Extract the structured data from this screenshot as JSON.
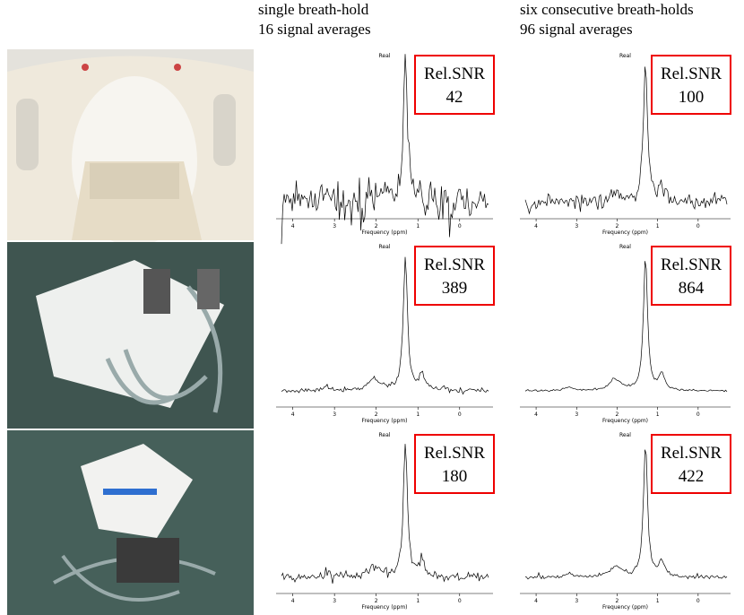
{
  "headers": [
    {
      "line1": "single breath-hold",
      "line2": "16 signal averages"
    },
    {
      "line1": "six consecutive breath-holds",
      "line2": "96 signal averages"
    }
  ],
  "spectrum_axis": {
    "title": "Real",
    "xlabel": "Frequency (ppm)",
    "xticks": [
      4,
      3,
      2,
      1,
      0
    ],
    "xlim": [
      4.4,
      -0.8
    ]
  },
  "snr_label": "Rel.SNR",
  "rows": [
    [
      42,
      100
    ],
    [
      389,
      864
    ],
    [
      180,
      422
    ]
  ]
}
